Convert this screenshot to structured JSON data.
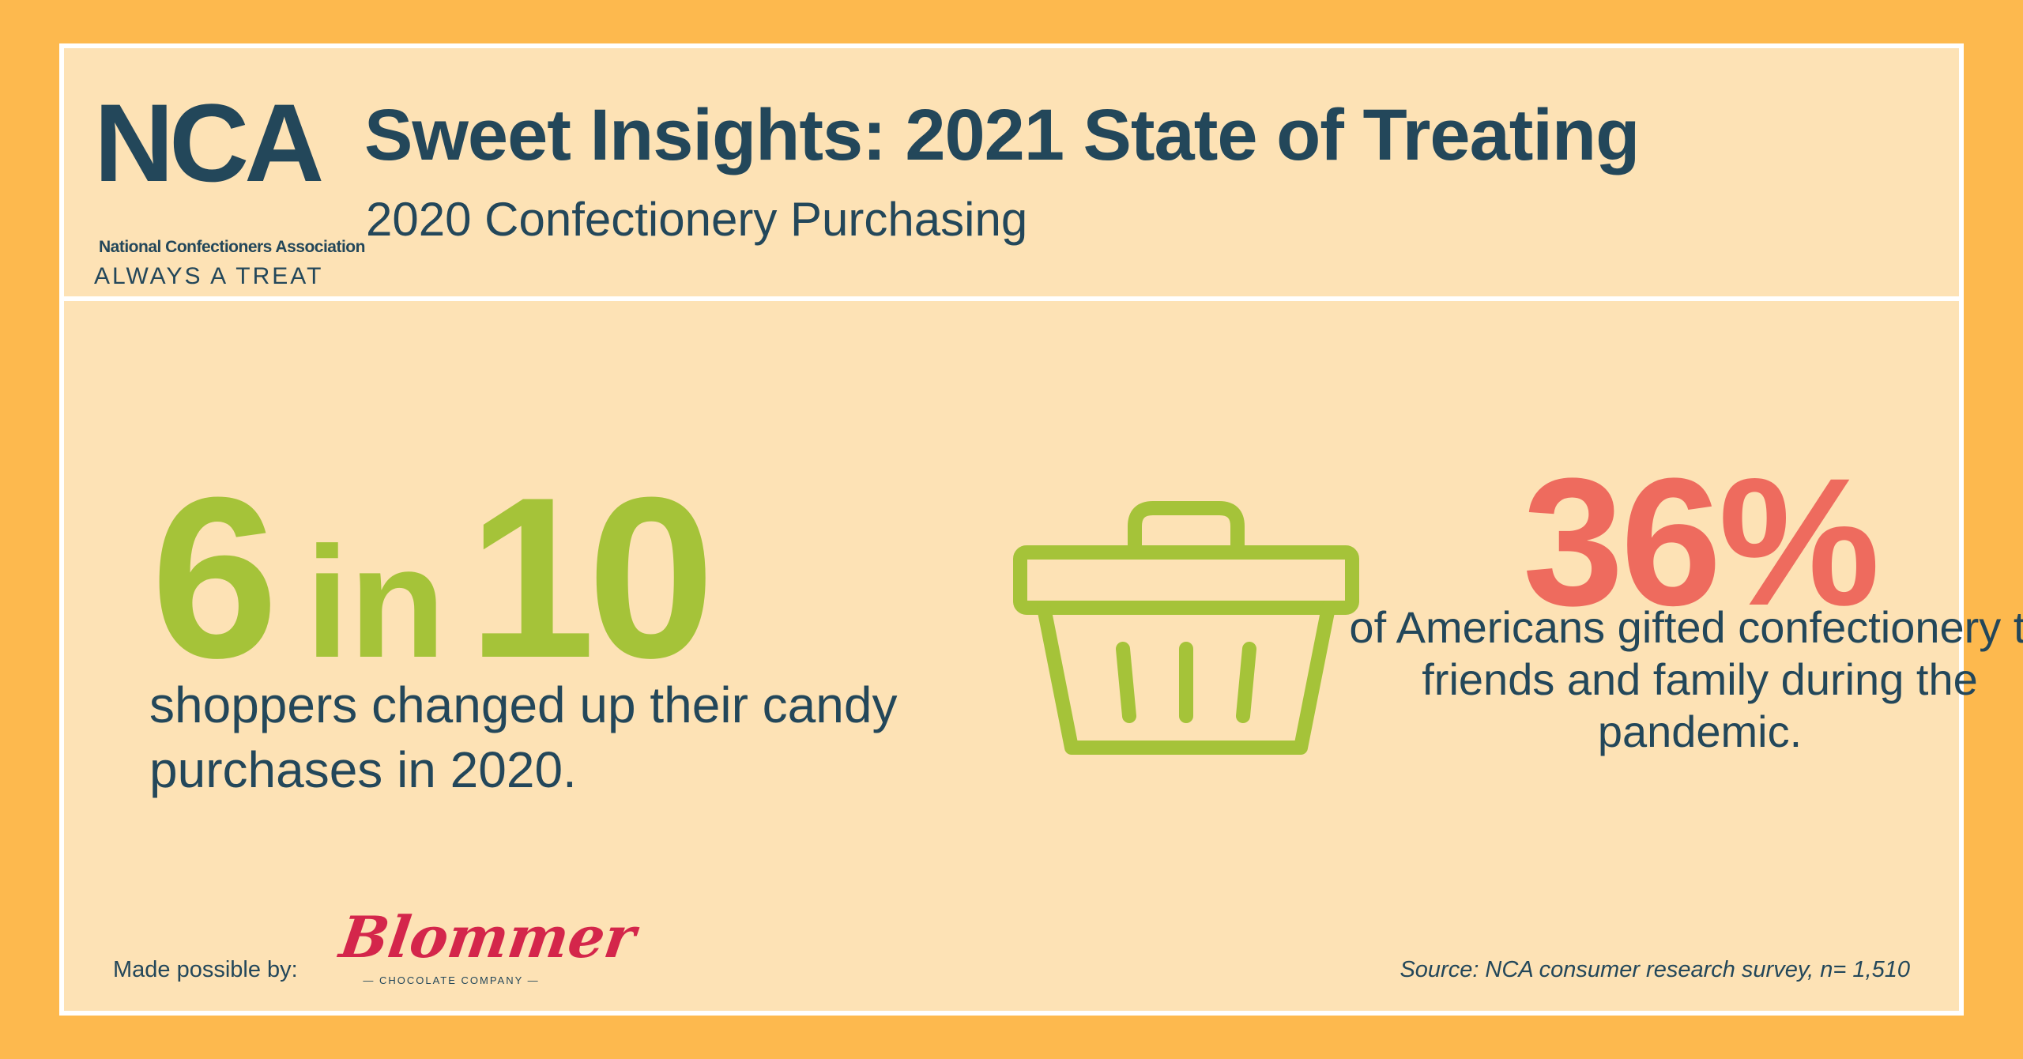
{
  "header": {
    "logo": {
      "mark": "NCA",
      "organization": "National Confectioners Association",
      "tagline": "ALWAYS A TREAT"
    },
    "title": "Sweet Insights: 2021 State of Treating",
    "subtitle": "2020 Confectionery Purchasing"
  },
  "stat_left": {
    "number_a": "6",
    "connector": "in",
    "number_b": "10",
    "description": "shoppers changed up their candy purchases in 2020."
  },
  "stat_right": {
    "value": "36%",
    "description": "of Americans gifted confectionery to friends and family during the pandemic."
  },
  "icons": {
    "basket": "shopping-basket-icon"
  },
  "footer": {
    "made_possible_by": "Made possible by:",
    "sponsor_name": "Blommer",
    "sponsor_sub": "— CHOCOLATE COMPANY —",
    "source": "Source: NCA consumer research survey, n= 1,510"
  },
  "colors": {
    "outer_background": "#FDB94E",
    "panel_background": "#FDE2B5",
    "border": "#FFFFFF",
    "navy": "#23475A",
    "green": "#A5C339",
    "coral": "#EE6B5E",
    "sponsor_red": "#D4264B"
  }
}
